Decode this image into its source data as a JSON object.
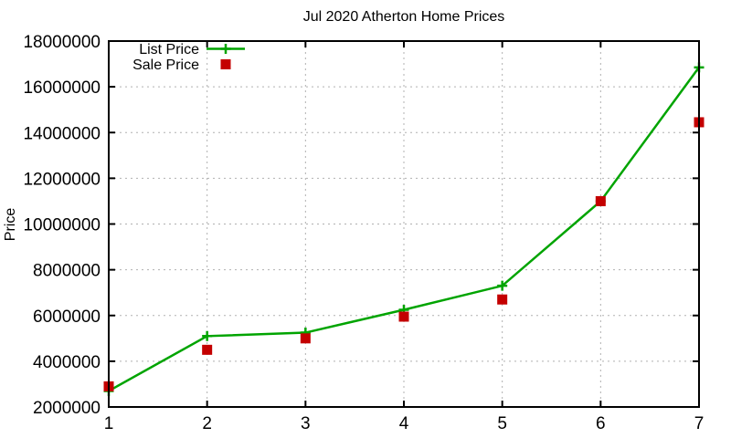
{
  "chart_data": {
    "type": "line",
    "title": "Jul 2020 Atherton Home Prices",
    "xlabel": "",
    "ylabel": "Price",
    "x": [
      1,
      2,
      3,
      4,
      5,
      6,
      7
    ],
    "xlim": [
      1,
      7
    ],
    "ylim": [
      2000000,
      18000000
    ],
    "x_ticks": [
      1,
      2,
      3,
      4,
      5,
      6,
      7
    ],
    "y_ticks": [
      2000000,
      4000000,
      6000000,
      8000000,
      10000000,
      12000000,
      14000000,
      16000000,
      18000000
    ],
    "grid": true,
    "grid_color": "#b0b0b0",
    "axis_color": "#000000",
    "legend_position": "top-left-inside",
    "series": [
      {
        "name": "List Price",
        "type": "line-with-markers",
        "marker": "plus",
        "color": "#00a400",
        "values": [
          2700000,
          5100000,
          5250000,
          6250000,
          7300000,
          11000000,
          16850000
        ]
      },
      {
        "name": "Sale Price",
        "type": "scatter",
        "marker": "filled-square",
        "color": "#c40000",
        "values": [
          2900000,
          4500000,
          5000000,
          5950000,
          6700000,
          11000000,
          14450000
        ]
      }
    ]
  }
}
